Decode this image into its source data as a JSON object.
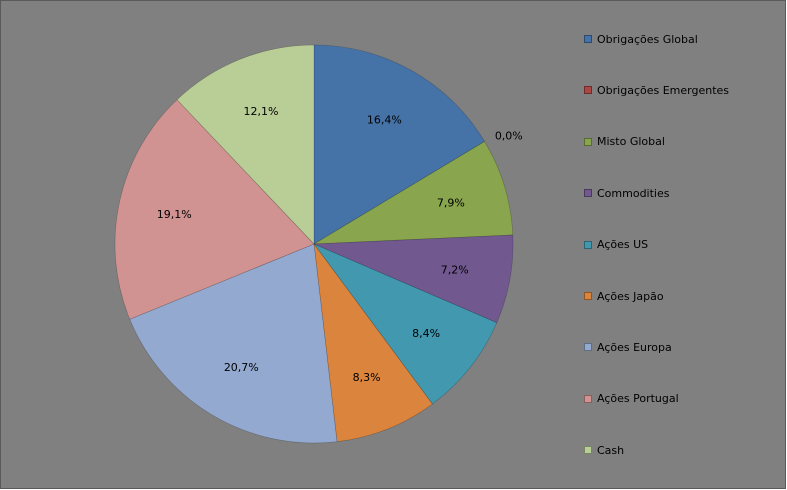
{
  "chart_data": {
    "type": "pie",
    "title": "",
    "start_angle_deg": 0,
    "direction": "clockwise",
    "legend_position": "right",
    "slices": [
      {
        "label": "Obrigações Global",
        "value": 16.4,
        "value_label": "16,4%",
        "color": "#4572a7"
      },
      {
        "label": "Obrigações Emergentes",
        "value": 0.0,
        "value_label": "0,0%",
        "color": "#aa4643"
      },
      {
        "label": "Misto Global",
        "value": 7.9,
        "value_label": "7,9%",
        "color": "#89a54e"
      },
      {
        "label": "Commodities",
        "value": 7.2,
        "value_label": "7,2%",
        "color": "#71588f"
      },
      {
        "label": "Ações US",
        "value": 8.4,
        "value_label": "8,4%",
        "color": "#4198af"
      },
      {
        "label": "Ações Japão",
        "value": 8.3,
        "value_label": "8,3%",
        "color": "#db843d"
      },
      {
        "label": "Ações Europa",
        "value": 20.7,
        "value_label": "20,7%",
        "color": "#93a9cf"
      },
      {
        "label": "Ações Portugal",
        "value": 19.1,
        "value_label": "19,1%",
        "color": "#d19392"
      },
      {
        "label": "Cash",
        "value": 12.1,
        "value_label": "12,1%",
        "color": "#b9cd96"
      }
    ]
  }
}
